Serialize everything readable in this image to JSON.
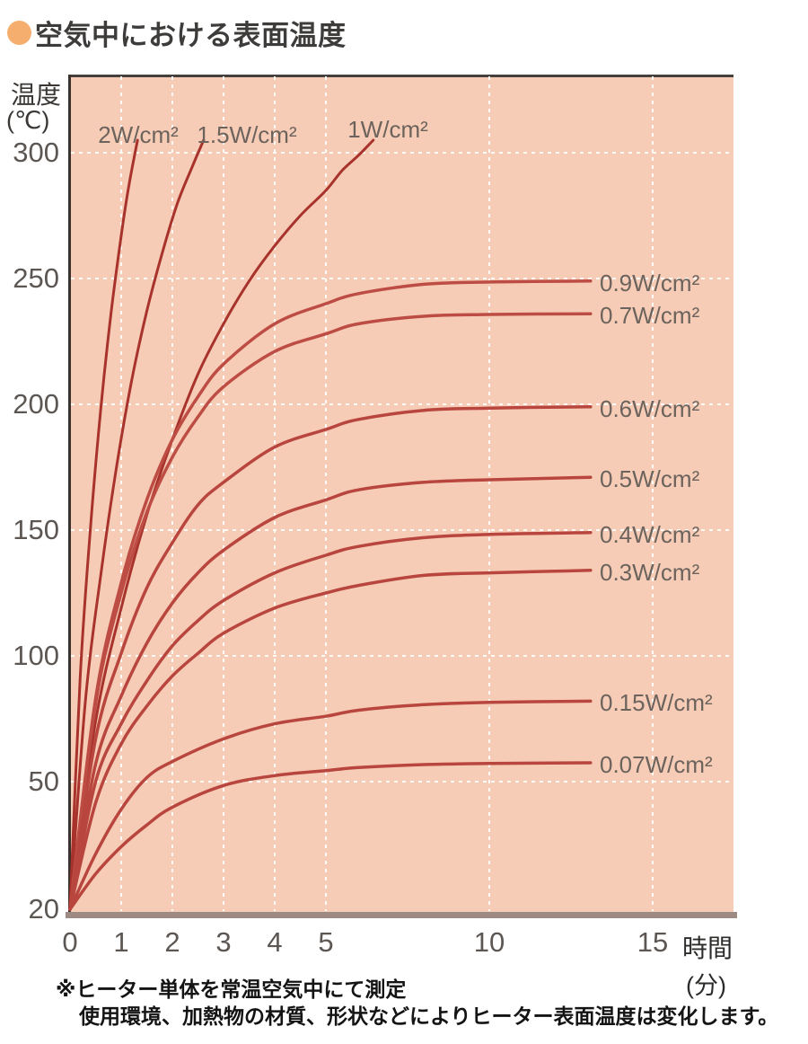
{
  "title": {
    "text": "空気中における表面温度",
    "bullet_color": "#f5ae6e"
  },
  "y_axis": {
    "title_line1": "温度",
    "title_line2": "(℃)"
  },
  "x_axis": {
    "title_line1": "時間",
    "title_line2": "(分)"
  },
  "notes": {
    "line1": "※ヒーター単体を常温空気中にて測定",
    "line2": "使用環境、加熱物の材質、形状などによりヒーター表面温度は変化します。"
  },
  "colors": {
    "plot_background": "#f7ccb6",
    "grid": "#ffffff",
    "axis": "#3a322e",
    "bottom_bar": "#9c8a83",
    "steep_curve": "#a8332c",
    "flat_curve": "#bd4d44"
  },
  "chart_data": {
    "type": "line",
    "title": "空気中における表面温度",
    "xlabel": "時間(分)",
    "ylabel": "温度(℃)",
    "x_ticks": [
      0,
      1,
      2,
      3,
      4,
      5,
      10,
      15
    ],
    "y_ticks": [
      20,
      50,
      100,
      150,
      200,
      250,
      300
    ],
    "xlim": [
      0,
      15.8
    ],
    "ylim": [
      20,
      310
    ],
    "grid": "white dashed",
    "axis_note": "x scale compressed beyond 5 min; y origin is 20°C",
    "series": [
      {
        "label": "2W/cm²",
        "power": 2,
        "color": "#a8332c",
        "width": 3,
        "label_side": "top",
        "points": [
          [
            0,
            20
          ],
          [
            0.2,
            92
          ],
          [
            0.4,
            151
          ],
          [
            0.6,
            198
          ],
          [
            0.8,
            236
          ],
          [
            1.0,
            267
          ],
          [
            1.15,
            287
          ],
          [
            1.32,
            305
          ]
        ]
      },
      {
        "label": "1.5W/cm²",
        "power": 1.5,
        "color": "#a8332c",
        "width": 3,
        "label_side": "top",
        "points": [
          [
            0,
            20
          ],
          [
            0.3,
            82
          ],
          [
            0.6,
            132
          ],
          [
            0.9,
            174
          ],
          [
            1.2,
            209
          ],
          [
            1.5,
            237
          ],
          [
            1.8,
            260
          ],
          [
            2.1,
            280
          ],
          [
            2.4,
            295
          ],
          [
            2.61,
            305
          ]
        ]
      },
      {
        "label": "1W/cm²",
        "power": 1,
        "color": "#a8332c",
        "width": 3,
        "label_side": "top",
        "points": [
          [
            0,
            20
          ],
          [
            0.5,
            74
          ],
          [
            1,
            119
          ],
          [
            1.5,
            156
          ],
          [
            2,
            186
          ],
          [
            2.5,
            212
          ],
          [
            3,
            232
          ],
          [
            3.5,
            249
          ],
          [
            4,
            263
          ],
          [
            4.5,
            275
          ],
          [
            5,
            285
          ],
          [
            5.5,
            293
          ],
          [
            6,
            299
          ],
          [
            6.45,
            305
          ]
        ]
      },
      {
        "label": "0.9W/cm²",
        "power": 0.9,
        "color": "#bd4d44",
        "width": 3.5,
        "label_side": "right",
        "points": [
          [
            0,
            20
          ],
          [
            0.5,
            83
          ],
          [
            1,
            129
          ],
          [
            1.5,
            162
          ],
          [
            2,
            186
          ],
          [
            2.5,
            203
          ],
          [
            3,
            216
          ],
          [
            4,
            232
          ],
          [
            5,
            240
          ],
          [
            6,
            244
          ],
          [
            8,
            247.7
          ],
          [
            10,
            248.6
          ],
          [
            13.1,
            249
          ]
        ]
      },
      {
        "label": "0.7W/cm²",
        "power": 0.7,
        "color": "#bd4d44",
        "width": 3.5,
        "label_side": "right",
        "points": [
          [
            0,
            20
          ],
          [
            0.5,
            81
          ],
          [
            1,
            125
          ],
          [
            1.5,
            157
          ],
          [
            2,
            179
          ],
          [
            2.5,
            195
          ],
          [
            3,
            207
          ],
          [
            4,
            221
          ],
          [
            5,
            228
          ],
          [
            6,
            232
          ],
          [
            8,
            235
          ],
          [
            10,
            235.7
          ],
          [
            13.1,
            236
          ]
        ]
      },
      {
        "label": "0.6W/cm²",
        "power": 0.6,
        "color": "#b8463e",
        "width": 3.5,
        "label_side": "right",
        "points": [
          [
            0,
            20
          ],
          [
            0.5,
            67
          ],
          [
            1,
            101
          ],
          [
            1.5,
            127
          ],
          [
            2,
            145
          ],
          [
            2.5,
            160
          ],
          [
            3,
            169
          ],
          [
            4,
            183
          ],
          [
            5,
            190
          ],
          [
            6,
            194
          ],
          [
            8,
            197.6
          ],
          [
            10,
            198.5
          ],
          [
            13.1,
            199
          ]
        ]
      },
      {
        "label": "0.5W/cm²",
        "power": 0.5,
        "color": "#b8463e",
        "width": 3.5,
        "label_side": "right",
        "points": [
          [
            0,
            20
          ],
          [
            0.5,
            57
          ],
          [
            1,
            84
          ],
          [
            1.5,
            105
          ],
          [
            2,
            121
          ],
          [
            2.5,
            133
          ],
          [
            3,
            142
          ],
          [
            4,
            155
          ],
          [
            5,
            162
          ],
          [
            6,
            166
          ],
          [
            8,
            169
          ],
          [
            10,
            170
          ],
          [
            13.1,
            171
          ]
        ]
      },
      {
        "label": "0.4W/cm²",
        "power": 0.4,
        "color": "#b8463e",
        "width": 3.5,
        "label_side": "right",
        "points": [
          [
            0,
            20
          ],
          [
            0.5,
            50
          ],
          [
            1,
            73
          ],
          [
            1.5,
            90
          ],
          [
            2,
            104
          ],
          [
            2.5,
            114
          ],
          [
            3,
            122
          ],
          [
            4,
            133
          ],
          [
            5,
            140
          ],
          [
            6,
            143.5
          ],
          [
            8,
            147
          ],
          [
            10,
            148.3
          ],
          [
            13.1,
            149
          ]
        ]
      },
      {
        "label": "0.3W/cm²",
        "power": 0.3,
        "color": "#b8463e",
        "width": 3.5,
        "label_side": "right",
        "points": [
          [
            0,
            20
          ],
          [
            0.5,
            45
          ],
          [
            1,
            65
          ],
          [
            1.5,
            80
          ],
          [
            2,
            92
          ],
          [
            2.5,
            101
          ],
          [
            3,
            109
          ],
          [
            4,
            119
          ],
          [
            5,
            125
          ],
          [
            6,
            128
          ],
          [
            8,
            132
          ],
          [
            10,
            133
          ],
          [
            13.1,
            134
          ]
        ]
      },
      {
        "label": "0.15W/cm²",
        "power": 0.15,
        "color": "#b8463e",
        "width": 3.5,
        "label_side": "right",
        "points": [
          [
            0,
            20
          ],
          [
            0.5,
            33
          ],
          [
            1,
            43.5
          ],
          [
            1.5,
            51.6
          ],
          [
            2,
            58
          ],
          [
            3,
            67
          ],
          [
            4,
            73
          ],
          [
            5,
            76
          ],
          [
            6,
            78.4
          ],
          [
            8,
            80.6
          ],
          [
            10,
            81.5
          ],
          [
            13.1,
            82
          ]
        ]
      },
      {
        "label": "0.07W/cm²",
        "power": 0.07,
        "color": "#b8463e",
        "width": 3.5,
        "label_side": "right",
        "points": [
          [
            0,
            20
          ],
          [
            0.5,
            28.3
          ],
          [
            1,
            34.7
          ],
          [
            1.5,
            39.8
          ],
          [
            2,
            44
          ],
          [
            3,
            49.1
          ],
          [
            4,
            52.4
          ],
          [
            5,
            54.4
          ],
          [
            6,
            55.6
          ],
          [
            8,
            56.8
          ],
          [
            10,
            57.2
          ],
          [
            13.1,
            57.5
          ]
        ]
      }
    ]
  }
}
